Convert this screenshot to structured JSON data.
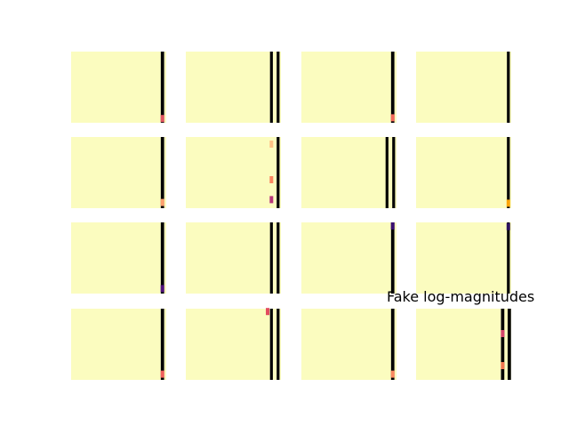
{
  "chart_data": {
    "type": "heatmap",
    "grid": {
      "rows": 4,
      "cols": 4
    },
    "axes_visible": false,
    "colormap": "magma",
    "background_color": "#fbfcbf",
    "annotation": "Fake log-magnitudes",
    "panels": [
      {
        "stripes": [
          {
            "pos": 0.96,
            "frac": 0.035
          }
        ],
        "hotspots": [
          {
            "pos": 0.96,
            "y": 0.94,
            "color": "#e25563"
          }
        ]
      },
      {
        "stripes": [
          {
            "pos": 0.9,
            "frac": 0.03
          },
          {
            "pos": 0.97,
            "frac": 0.03
          }
        ],
        "hotspots": []
      },
      {
        "stripes": [
          {
            "pos": 0.96,
            "frac": 0.035
          }
        ],
        "hotspots": [
          {
            "pos": 0.96,
            "y": 0.93,
            "color": "#f4695c"
          }
        ]
      },
      {
        "stripes": [
          {
            "pos": 0.97,
            "frac": 0.03
          }
        ],
        "hotspots": []
      },
      {
        "stripes": [
          {
            "pos": 0.96,
            "frac": 0.035
          }
        ],
        "hotspots": [
          {
            "pos": 0.96,
            "y": 0.92,
            "color": "#fe9f6d"
          }
        ]
      },
      {
        "stripes": [
          {
            "pos": 0.97,
            "frac": 0.03
          }
        ],
        "hotspots": [
          {
            "pos": 0.9,
            "y": 0.1,
            "color": "#fec287"
          },
          {
            "pos": 0.9,
            "y": 0.6,
            "color": "#fb8761"
          },
          {
            "pos": 0.9,
            "y": 0.88,
            "color": "#b73779"
          }
        ]
      },
      {
        "stripes": [
          {
            "pos": 0.9,
            "frac": 0.03
          },
          {
            "pos": 0.97,
            "frac": 0.03
          }
        ],
        "hotspots": []
      },
      {
        "stripes": [
          {
            "pos": 0.97,
            "frac": 0.03
          }
        ],
        "hotspots": [
          {
            "pos": 0.97,
            "y": 0.93,
            "color": "#fca50a"
          }
        ]
      },
      {
        "stripes": [
          {
            "pos": 0.96,
            "frac": 0.035
          }
        ],
        "hotspots": [
          {
            "pos": 0.96,
            "y": 0.93,
            "color": "#51127c"
          }
        ]
      },
      {
        "stripes": [
          {
            "pos": 0.9,
            "frac": 0.03
          },
          {
            "pos": 0.97,
            "frac": 0.03
          }
        ],
        "hotspots": []
      },
      {
        "stripes": [
          {
            "pos": 0.96,
            "frac": 0.035
          }
        ],
        "hotspots": [
          {
            "pos": 0.96,
            "y": 0.05,
            "color": "#3b0f70"
          }
        ]
      },
      {
        "stripes": [
          {
            "pos": 0.97,
            "frac": 0.03
          }
        ],
        "hotspots": [
          {
            "pos": 0.97,
            "y": 0.06,
            "color": "#2c115f"
          }
        ]
      },
      {
        "stripes": [
          {
            "pos": 0.96,
            "frac": 0.035
          }
        ],
        "hotspots": [
          {
            "pos": 0.96,
            "y": 0.92,
            "color": "#f1605d"
          }
        ]
      },
      {
        "stripes": [
          {
            "pos": 0.9,
            "frac": 0.03
          },
          {
            "pos": 0.97,
            "frac": 0.03
          }
        ],
        "hotspots": [
          {
            "pos": 0.86,
            "y": 0.04,
            "color": "#e24b5f"
          }
        ]
      },
      {
        "stripes": [
          {
            "pos": 0.96,
            "frac": 0.035
          }
        ],
        "hotspots": [
          {
            "pos": 0.96,
            "y": 0.92,
            "color": "#fb8a62"
          }
        ]
      },
      {
        "stripes": [
          {
            "pos": 0.91,
            "frac": 0.035
          },
          {
            "pos": 0.98,
            "frac": 0.035
          }
        ],
        "hotspots": [
          {
            "pos": 0.91,
            "y": 0.35,
            "color": "#d6456c"
          },
          {
            "pos": 0.91,
            "y": 0.8,
            "color": "#f37651"
          }
        ]
      }
    ]
  }
}
